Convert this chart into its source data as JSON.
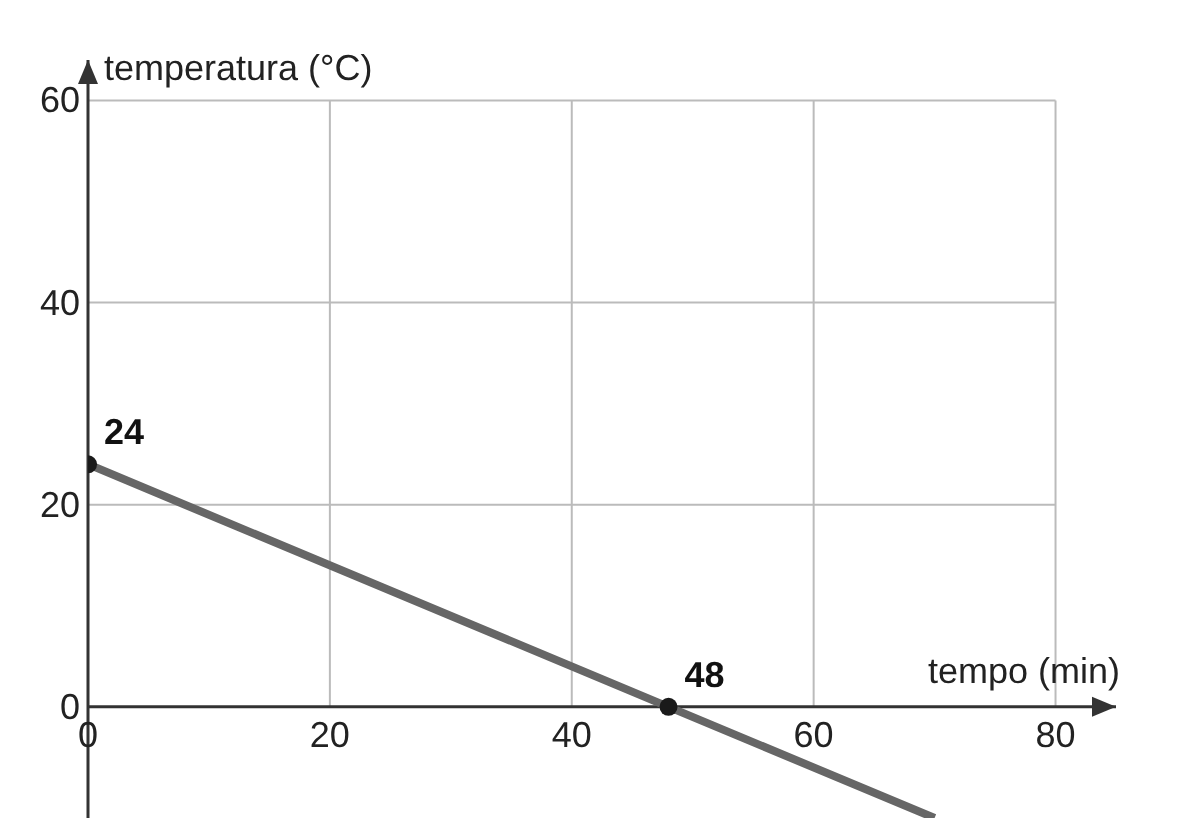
{
  "chart_data": {
    "type": "line",
    "xlabel": "tempo (min)",
    "ylabel": "temperatura (°C)",
    "xlim": [
      0,
      85
    ],
    "ylim": [
      -11,
      64
    ],
    "xticks": [
      0,
      20,
      40,
      60,
      80
    ],
    "yticks": [
      0,
      20,
      40,
      60
    ],
    "grid": true,
    "series": [
      {
        "type": "line",
        "color": "#666666",
        "x": [
          0,
          48,
          70
        ],
        "values": [
          24,
          0,
          -11
        ],
        "marker": "none"
      },
      {
        "type": "scatter",
        "color": "#1a1a1a",
        "x": [
          0,
          48
        ],
        "values": [
          24,
          0
        ],
        "marker": "circle"
      }
    ],
    "annotations": [
      {
        "text": "24",
        "x": 0,
        "y": 24
      },
      {
        "text": "48",
        "x": 48,
        "y": 0
      }
    ]
  }
}
